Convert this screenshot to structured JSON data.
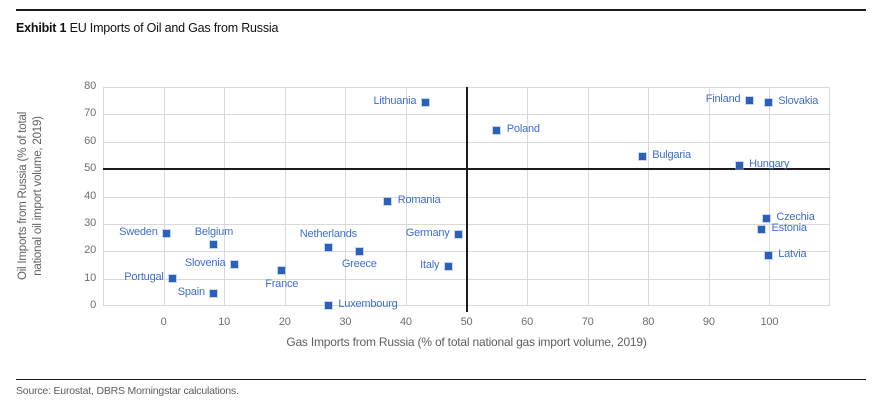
{
  "header": {
    "title_prefix": "Exhibit 1",
    "title_rest": " EU Imports of Oil and Gas from Russia"
  },
  "footer": {
    "source": "Source: Eurostat, DBRS Morningstar calculations."
  },
  "chart_data": {
    "type": "scatter",
    "title": "Exhibit 1 EU Imports of Oil and Gas from Russia",
    "xlabel": "Gas Imports from Russia (% of total national gas import volume, 2019)",
    "ylabel": "Oil Imports from Russia (% of total national oil import volume, 2019)",
    "ylabel_lines": [
      "Oil Imports from Russia (% of total",
      "national oil import volume, 2019)"
    ],
    "xlim": [
      -10,
      110
    ],
    "ylim": [
      0,
      80
    ],
    "x_ticks": [
      0,
      10,
      20,
      30,
      40,
      50,
      60,
      70,
      80,
      90,
      100
    ],
    "y_ticks": [
      0,
      10,
      20,
      30,
      40,
      50,
      60,
      70,
      80
    ],
    "grid": true,
    "legend": "none",
    "reference_line_x": 50,
    "reference_line_y": 50,
    "marker_color": "#2b5fb8",
    "label_color": "#3e6dd2",
    "points": [
      {
        "name": "Sweden",
        "x": 0.5,
        "y": 26.5,
        "label_pos": "left"
      },
      {
        "name": "Portugal",
        "x": 1.5,
        "y": 10,
        "label_pos": "left"
      },
      {
        "name": "Belgium",
        "x": 8.3,
        "y": 22.3,
        "label_pos": "above"
      },
      {
        "name": "Spain",
        "x": 8.3,
        "y": 4.5,
        "label_pos": "left"
      },
      {
        "name": "Slovenia",
        "x": 11.7,
        "y": 15,
        "label_pos": "left"
      },
      {
        "name": "France",
        "x": 19.5,
        "y": 12.8,
        "label_pos": "below"
      },
      {
        "name": "Netherlands",
        "x": 27.2,
        "y": 21.5,
        "label_pos": "above"
      },
      {
        "name": "Luxembourg",
        "x": 27.2,
        "y": 0.3,
        "label_pos": "right"
      },
      {
        "name": "Greece",
        "x": 32.3,
        "y": 20,
        "label_pos": "below"
      },
      {
        "name": "Romania",
        "x": 37,
        "y": 38,
        "label_pos": "right"
      },
      {
        "name": "Lithuania",
        "x": 43.2,
        "y": 74.5,
        "label_pos": "left"
      },
      {
        "name": "Italy",
        "x": 47,
        "y": 14.5,
        "label_pos": "left"
      },
      {
        "name": "Germany",
        "x": 48.7,
        "y": 26,
        "label_pos": "left"
      },
      {
        "name": "Poland",
        "x": 55,
        "y": 64,
        "label_pos": "right"
      },
      {
        "name": "Bulgaria",
        "x": 79,
        "y": 54.5,
        "label_pos": "right"
      },
      {
        "name": "Hungary",
        "x": 95,
        "y": 51.3,
        "label_pos": "right"
      },
      {
        "name": "Finland",
        "x": 96.7,
        "y": 75,
        "label_pos": "left"
      },
      {
        "name": "Slovakia",
        "x": 99.8,
        "y": 74.3,
        "label_pos": "right"
      },
      {
        "name": "Czechia",
        "x": 99.5,
        "y": 32,
        "label_pos": "right"
      },
      {
        "name": "Estonia",
        "x": 98.7,
        "y": 28,
        "label_pos": "right"
      },
      {
        "name": "Latvia",
        "x": 99.8,
        "y": 18.5,
        "label_pos": "right"
      }
    ]
  }
}
